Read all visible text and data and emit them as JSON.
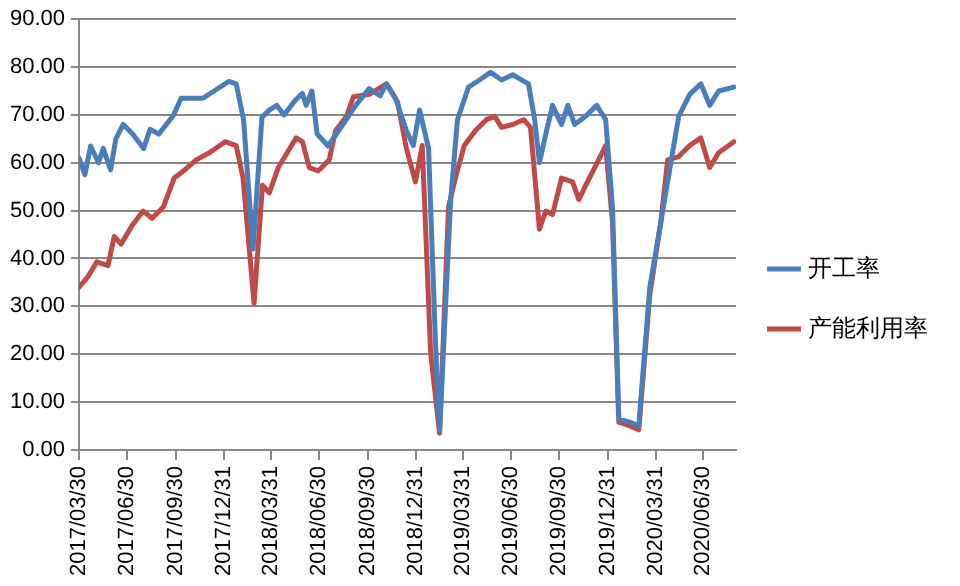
{
  "chart_data": {
    "type": "line",
    "grid": "y",
    "legend": "right",
    "marker": "none",
    "line_style": "solid",
    "xlim": [
      "2017-03-30",
      "2020-08-31"
    ],
    "xticks": [
      {
        "value": "2017-03-30",
        "label": "2017/03/30"
      },
      {
        "value": "2017-06-30",
        "label": "2017/06/30"
      },
      {
        "value": "2017-09-30",
        "label": "2017/09/30"
      },
      {
        "value": "2017-12-31",
        "label": "2017/12/31"
      },
      {
        "value": "2018-03-31",
        "label": "2018/03/31"
      },
      {
        "value": "2018-06-30",
        "label": "2018/06/30"
      },
      {
        "value": "2018-09-30",
        "label": "2018/09/30"
      },
      {
        "value": "2018-12-31",
        "label": "2018/12/31"
      },
      {
        "value": "2019-03-31",
        "label": "2019/03/31"
      },
      {
        "value": "2019-06-30",
        "label": "2019/06/30"
      },
      {
        "value": "2019-09-30",
        "label": "2019/09/30"
      },
      {
        "value": "2019-12-31",
        "label": "2019/12/31"
      },
      {
        "value": "2020-03-31",
        "label": "2020/03/31"
      },
      {
        "value": "2020-06-30",
        "label": "2020/06/30"
      }
    ],
    "ylim": [
      0,
      90
    ],
    "yticks": [
      {
        "value": 0,
        "label": "0.00"
      },
      {
        "value": 10,
        "label": "10.00"
      },
      {
        "value": 20,
        "label": "20.00"
      },
      {
        "value": 30,
        "label": "30.00"
      },
      {
        "value": 40,
        "label": "40.00"
      },
      {
        "value": 50,
        "label": "50.00"
      },
      {
        "value": 60,
        "label": "60.00"
      },
      {
        "value": 70,
        "label": "70.00"
      },
      {
        "value": 80,
        "label": "80.00"
      },
      {
        "value": 90,
        "label": "90.00"
      }
    ],
    "series": [
      {
        "name": "开工率",
        "color": "#4a7ebb",
        "x": [
          "2017-03-30",
          "2017-04-10",
          "2017-04-21",
          "2017-05-06",
          "2017-05-15",
          "2017-05-29",
          "2017-06-08",
          "2017-06-22",
          "2017-07-10",
          "2017-07-31",
          "2017-08-12",
          "2017-08-29",
          "2017-09-26",
          "2017-10-10",
          "2017-11-21",
          "2017-12-12",
          "2018-01-09",
          "2018-01-23",
          "2018-02-06",
          "2018-02-24",
          "2018-03-13",
          "2018-03-27",
          "2018-04-10",
          "2018-04-24",
          "2018-05-15",
          "2018-05-29",
          "2018-06-05",
          "2018-06-16",
          "2018-06-26",
          "2018-07-17",
          "2018-08-14",
          "2018-09-11",
          "2018-10-03",
          "2018-10-24",
          "2018-11-05",
          "2018-11-22",
          "2018-12-13",
          "2018-12-26",
          "2019-01-07",
          "2019-01-24",
          "2019-02-06",
          "2019-02-14",
          "2019-03-07",
          "2019-03-20",
          "2019-04-10",
          "2019-05-01",
          "2019-05-22",
          "2019-06-12",
          "2019-07-03",
          "2019-08-02",
          "2019-08-14",
          "2019-08-23",
          "2019-09-04",
          "2019-09-17",
          "2019-10-04",
          "2019-10-16",
          "2019-10-29",
          "2019-11-19",
          "2019-12-10",
          "2019-12-27",
          "2020-01-09",
          "2020-01-21",
          "2020-02-11",
          "2020-02-28",
          "2020-03-20",
          "2020-04-10",
          "2020-05-01",
          "2020-05-14",
          "2020-06-04",
          "2020-06-25",
          "2020-07-12",
          "2020-07-29",
          "2020-08-27"
        ],
        "values": [
          61,
          57.5,
          63.5,
          60,
          63,
          58.5,
          65,
          68,
          66,
          63,
          67,
          66,
          70,
          73.5,
          73.5,
          75,
          77,
          76.5,
          69,
          42,
          69.5,
          71,
          72,
          70,
          73,
          74.5,
          72,
          75,
          66,
          63.5,
          68,
          72.5,
          75.5,
          74,
          76.5,
          73.5,
          66.7,
          63.6,
          71,
          63,
          23,
          4,
          52,
          69,
          75.8,
          77.3,
          78.9,
          77.3,
          78.4,
          76.5,
          69,
          60,
          66,
          72,
          68,
          72,
          68,
          69.7,
          72,
          69,
          50.7,
          6.5,
          5.8,
          5,
          34,
          47.6,
          61.3,
          69.7,
          74.3,
          76.5,
          72,
          75,
          75.8
        ]
      },
      {
        "name": "产能利用率",
        "color": "#be4b48",
        "x": [
          "2017-03-30",
          "2017-04-16",
          "2017-05-03",
          "2017-05-24",
          "2017-06-05",
          "2017-06-18",
          "2017-07-09",
          "2017-07-30",
          "2017-08-16",
          "2017-09-06",
          "2017-09-27",
          "2017-10-18",
          "2017-11-08",
          "2017-12-03",
          "2018-01-02",
          "2018-01-23",
          "2018-02-05",
          "2018-02-26",
          "2018-03-14",
          "2018-03-27",
          "2018-04-13",
          "2018-04-30",
          "2018-05-17",
          "2018-05-29",
          "2018-06-11",
          "2018-06-28",
          "2018-07-19",
          "2018-07-31",
          "2018-08-21",
          "2018-09-03",
          "2018-10-03",
          "2018-11-05",
          "2018-11-26",
          "2018-12-13",
          "2018-12-30",
          "2019-01-12",
          "2019-01-28",
          "2019-02-14",
          "2019-03-03",
          "2019-03-16",
          "2019-04-02",
          "2019-04-23",
          "2019-05-14",
          "2019-05-30",
          "2019-06-12",
          "2019-07-03",
          "2019-07-24",
          "2019-08-06",
          "2019-08-23",
          "2019-09-04",
          "2019-09-17",
          "2019-10-04",
          "2019-10-25",
          "2019-11-06",
          "2019-11-19",
          "2019-12-10",
          "2019-12-27",
          "2020-01-09",
          "2020-01-21",
          "2020-02-11",
          "2020-02-28",
          "2020-03-20",
          "2020-04-10",
          "2020-04-23",
          "2020-05-14",
          "2020-06-04",
          "2020-06-25",
          "2020-07-12",
          "2020-07-29",
          "2020-08-27"
        ],
        "values": [
          34,
          36.2,
          39.3,
          38.5,
          44.6,
          43,
          46.9,
          49.9,
          48.4,
          50.7,
          56.8,
          58.6,
          60.6,
          62.1,
          64.4,
          63.6,
          56.8,
          30.6,
          55.3,
          53.7,
          59,
          62.1,
          65.2,
          64.4,
          59,
          58.3,
          60.6,
          66.7,
          69.7,
          73.8,
          74.3,
          76.5,
          72.7,
          62.9,
          56,
          63.6,
          20.2,
          3.5,
          50.7,
          56.8,
          63.6,
          66.7,
          69,
          69.7,
          67.4,
          68,
          69,
          67.4,
          46.1,
          49.9,
          49.2,
          56.8,
          56,
          52.3,
          55.3,
          59.8,
          63.6,
          47.6,
          5.8,
          5,
          4.2,
          32.4,
          47.6,
          60.6,
          61.3,
          63.6,
          65.2,
          59,
          62.1,
          64.4
        ]
      }
    ]
  }
}
